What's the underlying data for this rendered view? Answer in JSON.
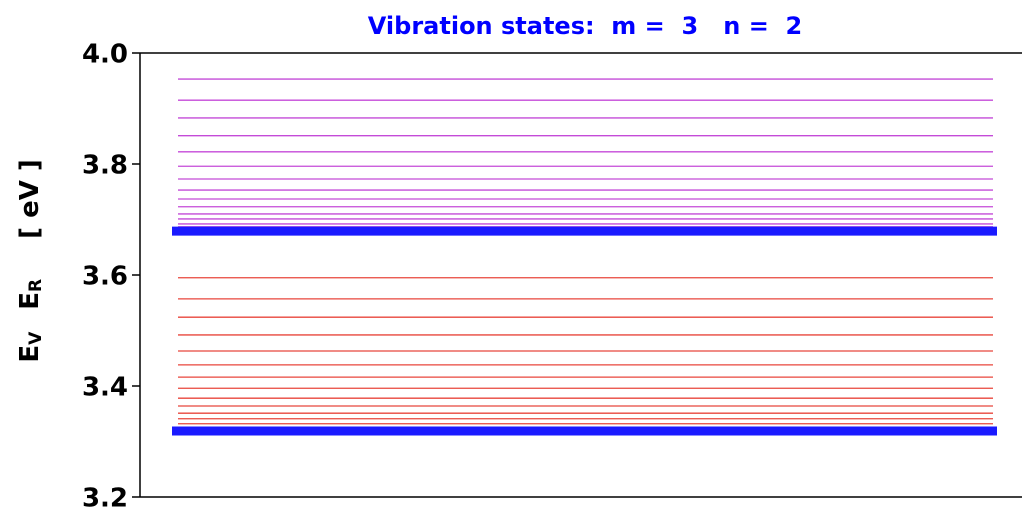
{
  "chart_data": {
    "type": "levels",
    "title": "Vibration states:  m =  3   n =  2",
    "ylabel": [
      {
        "text": "E",
        "sub": "V"
      },
      {
        "text": "E",
        "sub": "R"
      },
      {
        "text": "[ eV ]"
      }
    ],
    "ylim": [
      3.2,
      4.0
    ],
    "yticks": [
      3.2,
      3.4,
      3.6,
      3.8,
      {
        "value": 4,
        "label": "4.0"
      }
    ],
    "series": [
      {
        "color": "#e8463c",
        "values": [
          3.595,
          3.557,
          3.524,
          3.492,
          3.463,
          3.438,
          3.416,
          3.396,
          3.378,
          3.364,
          3.351,
          3.341,
          3.332,
          3.324
        ]
      },
      {
        "color": "#c44ad8",
        "values": [
          3.953,
          3.915,
          3.883,
          3.851,
          3.822,
          3.796,
          3.773,
          3.753,
          3.737,
          3.723,
          3.71,
          3.701,
          3.692,
          3.687
        ]
      },
      {
        "color": "#1a1aff",
        "values": [
          3.319,
          3.679
        ]
      }
    ]
  }
}
